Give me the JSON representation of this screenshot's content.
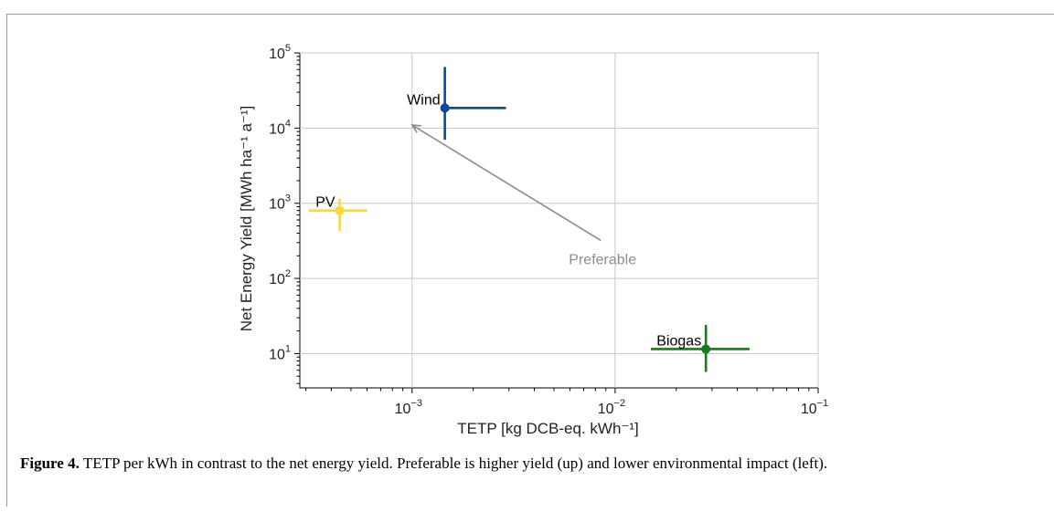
{
  "figure": {
    "label": "Figure 4.",
    "caption": "TETP per kWh in contrast to the net energy yield. Preferable is higher yield (up) and lower environmental impact (left)."
  },
  "chart_data": {
    "type": "scatter",
    "title": "",
    "xlabel": "TETP [kg DCB-eq. kWh⁻¹]",
    "ylabel": "Net Energy Yield [MWh ha⁻¹ a⁻¹]",
    "xscale": "log",
    "yscale": "log",
    "xlim": [
      0.00028,
      0.1
    ],
    "ylim": [
      3.5,
      100000
    ],
    "grid": true,
    "x_ticks": [
      {
        "value": 0.001,
        "base": "10",
        "exp": "−3"
      },
      {
        "value": 0.01,
        "base": "10",
        "exp": "−2"
      },
      {
        "value": 0.1,
        "base": "10",
        "exp": "−1"
      }
    ],
    "y_ticks": [
      {
        "value": 10,
        "base": "10",
        "exp": "1"
      },
      {
        "value": 100,
        "base": "10",
        "exp": "2"
      },
      {
        "value": 1000,
        "base": "10",
        "exp": "3"
      },
      {
        "value": 10000,
        "base": "10",
        "exp": "4"
      },
      {
        "value": 100000,
        "base": "10",
        "exp": "5"
      }
    ],
    "series": [
      {
        "name": "Wind",
        "color": "#0d47a1",
        "x": 0.00145,
        "y": 18500,
        "xerr": [
          0.00145,
          0.0029
        ],
        "yerr": [
          7000,
          65000
        ]
      },
      {
        "name": "PV",
        "color": "#fdd835",
        "x": 0.00044,
        "y": 800,
        "xerr": [
          0.00031,
          0.0006
        ],
        "yerr": [
          430,
          1150
        ]
      },
      {
        "name": "Biogas",
        "color": "#1b7a1b",
        "x": 0.028,
        "y": 11.5,
        "xerr": [
          0.015,
          0.046
        ],
        "yerr": [
          5.7,
          24
        ]
      }
    ],
    "annotation": {
      "text": "Preferable",
      "from": {
        "x": 0.0085,
        "y": 320
      },
      "to": {
        "x": 0.001,
        "y": 11000
      },
      "color": "#8c8c8c"
    }
  }
}
